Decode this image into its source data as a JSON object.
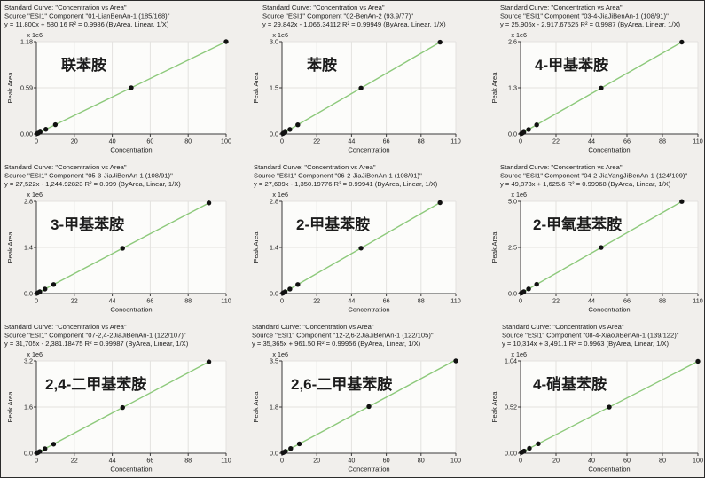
{
  "shared": {
    "title_line": "Standard Curve: \"Concentration vs Area\"",
    "xlabel": "Concentration",
    "ylabel": "Peak Area",
    "scale_label": "x 1e6",
    "colors": {
      "regression_line": "#8dc97b",
      "data_point": "#111111",
      "grid": "#e3e2df",
      "plot_bg": "#fcfcfa",
      "page_bg": "#f1efec",
      "axis": "#3a3a3a",
      "text": "#1c1c1c"
    }
  },
  "chart_data": [
    {
      "type": "scatter",
      "title": "Standard Curve: \"Concentration vs Area\"",
      "source_line": "Source \"ESI1\" Component \"01-LianBenAn-1 (185/168)\"",
      "equation_line": "y = 11,800x + 580.16   R² = 0.9986  (ByArea, Linear, 1/X)",
      "compound_label": "联苯胺",
      "slope": 11800,
      "intercept": 580.16,
      "r2": 0.9986,
      "weighting": "1/X",
      "x": [
        0.5,
        1,
        2,
        5,
        10,
        50,
        100
      ],
      "y_1e6": [
        0.0065,
        0.0124,
        0.0242,
        0.0596,
        0.1186,
        0.5906,
        1.1806
      ],
      "x_ticks": [
        0,
        20,
        40,
        60,
        80,
        100
      ],
      "x_max": 100,
      "y_tick_labels": [
        "0.00",
        "0.59",
        "1.18"
      ],
      "y_max_1e6": 1.18,
      "xlabel": "Concentration",
      "ylabel": "Peak Area",
      "indent": 4,
      "label_dx": 28
    },
    {
      "type": "scatter",
      "title": "Standard Curve: \"Concentration vs Area\"",
      "source_line": "Source \"ESI1\" Component \"02-BenAn-2 (93.9/77)\"",
      "equation_line": "y = 29,842x - 1,066.34112   R² = 0.99949  (ByArea, Linear, 1/X)",
      "compound_label": "苯胺",
      "slope": 29842,
      "intercept": -1066.34112,
      "r2": 0.99949,
      "weighting": "1/X",
      "x": [
        0.5,
        1,
        2,
        5,
        10,
        50,
        100
      ],
      "y_1e6": [
        0.0139,
        0.0288,
        0.0586,
        0.1481,
        0.2973,
        1.491,
        2.9831
      ],
      "x_ticks": [
        0,
        22,
        44,
        66,
        88,
        110
      ],
      "x_max": 110,
      "y_tick_labels": [
        "0.0",
        "1.5",
        "3.0"
      ],
      "y_max_1e6": 3.0,
      "xlabel": "Concentration",
      "ylabel": "Peak Area",
      "indent": 30,
      "label_dx": 28
    },
    {
      "type": "scatter",
      "title": "Standard Curve: \"Concentration vs Area\"",
      "source_line": "Source \"ESI1\" Component \"03-4-JiaJiBenAn-1 (108/91)\"",
      "equation_line": "y = 25,905x - 2,917.67525   R² = 0.9987  (ByArea, Linear, 1/X)",
      "compound_label": "4-甲基苯胺",
      "slope": 25905,
      "intercept": -2917.67525,
      "r2": 0.9987,
      "weighting": "1/X",
      "x": [
        0.5,
        1,
        2,
        5,
        10,
        50,
        100
      ],
      "y_1e6": [
        0.01,
        0.023,
        0.0489,
        0.1266,
        0.2561,
        1.2924,
        2.5876
      ],
      "x_ticks": [
        0,
        22,
        44,
        66,
        88,
        110
      ],
      "x_max": 110,
      "y_tick_labels": [
        "0.0",
        "1.3",
        "2.6"
      ],
      "y_max_1e6": 2.6,
      "xlabel": "Concentration",
      "ylabel": "Peak Area",
      "indent": 33,
      "label_dx": 16
    },
    {
      "type": "scatter",
      "title": "Standard Curve: \"Concentration vs Area\"",
      "source_line": "Source \"ESI1\" Component \"05-3-JiaJiBenAn-1 (108/91)\"",
      "equation_line": "y = 27,522x - 1,244.92823   R² = 0.999  (ByArea, Linear, 1/X)",
      "compound_label": "3-甲基苯胺",
      "slope": 27522,
      "intercept": -1244.92823,
      "r2": 0.999,
      "weighting": "1/X",
      "x": [
        0.5,
        1,
        2,
        5,
        10,
        50,
        100
      ],
      "y_1e6": [
        0.0125,
        0.0263,
        0.0538,
        0.1364,
        0.274,
        1.3749,
        2.751
      ],
      "x_ticks": [
        0,
        22,
        44,
        66,
        88,
        110
      ],
      "x_max": 110,
      "y_tick_labels": [
        "0.0",
        "1.4",
        "2.8"
      ],
      "y_max_1e6": 2.8,
      "xlabel": "Concentration",
      "ylabel": "Peak Area",
      "indent": 4,
      "label_dx": 16
    },
    {
      "type": "scatter",
      "title": "Standard Curve: \"Concentration vs Area\"",
      "source_line": "Source \"ESI1\" Component \"06-2-JiaJiBenAn-1 (108/91)\"",
      "equation_line": "y = 27,609x - 1,350.19776   R² = 0.99941  (ByArea, Linear, 1/X)",
      "compound_label": "2-甲基苯胺",
      "slope": 27609,
      "intercept": -1350.19776,
      "r2": 0.99941,
      "weighting": "1/X",
      "x": [
        0.5,
        1,
        2,
        5,
        10,
        50,
        100
      ],
      "y_1e6": [
        0.0125,
        0.0263,
        0.0537,
        0.1367,
        0.2748,
        1.3791,
        2.7596
      ],
      "x_ticks": [
        0,
        22,
        44,
        66,
        88,
        110
      ],
      "x_max": 110,
      "y_tick_labels": [
        "0.0",
        "1.4",
        "2.8"
      ],
      "y_max_1e6": 2.8,
      "xlabel": "Concentration",
      "ylabel": "Peak Area",
      "indent": 20,
      "label_dx": 16
    },
    {
      "type": "scatter",
      "title": "Standard Curve: \"Concentration vs Area\"",
      "source_line": "Source \"ESI1\" Component \"04-2-JiaYangJiBenAn-1 (124/109)\"",
      "equation_line": "y = 49,873x + 1,625.6   R² = 0.99968  (ByArea, Linear, 1/X)",
      "compound_label": "2-甲氧基苯胺",
      "slope": 49873,
      "intercept": 1625.6,
      "r2": 0.99968,
      "weighting": "1/X",
      "x": [
        0.5,
        1,
        2,
        5,
        10,
        50,
        100
      ],
      "y_1e6": [
        0.0266,
        0.0515,
        0.1014,
        0.251,
        0.5004,
        2.4953,
        4.9889
      ],
      "x_ticks": [
        0,
        22,
        44,
        66,
        88,
        110
      ],
      "x_max": 110,
      "y_tick_labels": [
        "0.0",
        "2.5",
        "5.0"
      ],
      "y_max_1e6": 5.0,
      "xlabel": "Concentration",
      "ylabel": "Peak Area",
      "indent": 33,
      "label_dx": 14
    },
    {
      "type": "scatter",
      "title": "Standard Curve: \"Concentration vs Area\"",
      "source_line": "Source \"ESI1\" Component \"07-2,4-2JiaJiBenAn-1 (122/107)\"",
      "equation_line": "y = 31,705x - 2,381.18475   R² = 0.99987  (ByArea, Linear, 1/X)",
      "compound_label": "2,4-二甲基苯胺",
      "slope": 31705,
      "intercept": -2381.18475,
      "r2": 0.99987,
      "weighting": "1/X",
      "x": [
        0.5,
        1,
        2,
        5,
        10,
        50,
        100
      ],
      "y_1e6": [
        0.0135,
        0.0293,
        0.061,
        0.1561,
        0.3147,
        1.5829,
        3.1681
      ],
      "x_ticks": [
        0,
        22,
        44,
        66,
        88,
        110
      ],
      "x_max": 110,
      "y_tick_labels": [
        "0.0",
        "1.6",
        "3.2"
      ],
      "y_max_1e6": 3.2,
      "xlabel": "Concentration",
      "ylabel": "Peak Area",
      "indent": 4,
      "label_dx": 10
    },
    {
      "type": "scatter",
      "title": "Standard Curve: \"Concentration vs Area\"",
      "source_line": "Source \"ESI1\" Component \"12-2,6-2JiaJiBenAn-1 (122/105)\"",
      "equation_line": "y = 35,365x + 961.50   R² = 0.99956  (ByArea, Linear, 1/X)",
      "compound_label": "2,6-二甲基苯胺",
      "slope": 35365,
      "intercept": 961.5,
      "r2": 0.99956,
      "weighting": "1/X",
      "x": [
        0.5,
        1,
        2,
        5,
        10,
        50,
        100
      ],
      "y_1e6": [
        0.0186,
        0.0363,
        0.0717,
        0.1778,
        0.3546,
        1.7692,
        3.5375
      ],
      "x_ticks": [
        0,
        20,
        40,
        60,
        80,
        100
      ],
      "x_max": 100,
      "y_tick_labels": [
        "0.0",
        "1.8",
        "3.5"
      ],
      "y_max_1e6": 3.5,
      "xlabel": "Concentration",
      "ylabel": "Peak Area",
      "indent": 18,
      "label_dx": 10
    },
    {
      "type": "scatter",
      "title": "Standard Curve: \"Concentration vs Area\"",
      "source_line": "Source \"ESI1\" Component \"08-4-XiaoJiBenAn-1 (139/122)\"",
      "equation_line": "y = 10,314x + 3,491.1   R² = 0.9963  (ByArea, Linear, 1/X)",
      "compound_label": "4-硝基苯胺",
      "slope": 10314,
      "intercept": 3491.1,
      "r2": 0.9963,
      "weighting": "1/X",
      "x": [
        0.5,
        1,
        2,
        5,
        10,
        50,
        100
      ],
      "y_1e6": [
        0.0087,
        0.0138,
        0.0241,
        0.055,
        0.1066,
        0.5192,
        1.0349
      ],
      "x_ticks": [
        0,
        20,
        40,
        60,
        80,
        100
      ],
      "x_max": 100,
      "y_tick_labels": [
        "0.00",
        "0.52",
        "1.04"
      ],
      "y_max_1e6": 1.04,
      "xlabel": "Concentration",
      "ylabel": "Peak Area",
      "indent": 35,
      "label_dx": 14
    }
  ]
}
